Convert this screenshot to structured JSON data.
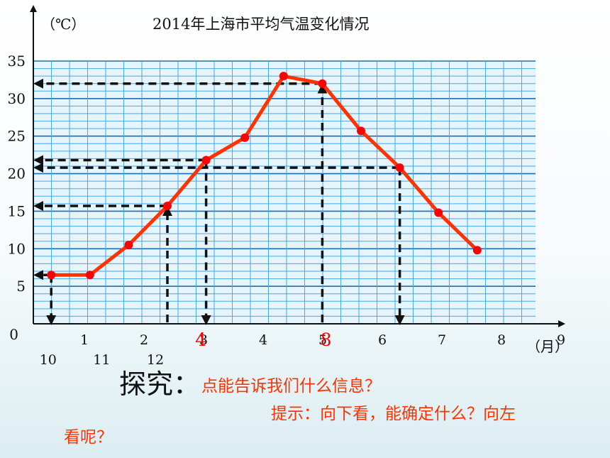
{
  "chart_data": {
    "type": "line",
    "title": "2014年上海市平均气温变化情况",
    "y_unit_label": "（℃）",
    "x_unit_label": "（月）",
    "ylim": [
      0,
      35
    ],
    "y_ticks": [
      "0",
      "5",
      "10",
      "15",
      "20",
      "25",
      "30",
      "35"
    ],
    "x_tick_labels": [
      {
        "label": "1",
        "x": 1
      },
      {
        "label": "2",
        "x": 2
      },
      {
        "label": "3",
        "x": 3
      },
      {
        "label": "4",
        "x": 4
      },
      {
        "label": "5",
        "x": 5
      },
      {
        "label": "6",
        "x": 6
      },
      {
        "label": "7",
        "x": 7
      },
      {
        "label": "8",
        "x": 8
      },
      {
        "label": "9",
        "x": 9
      }
    ],
    "x_second_row_labels": [
      {
        "label": "10",
        "x": 0.2
      },
      {
        "label": "11",
        "x": 1.1
      },
      {
        "label": "12",
        "x": 2.0
      }
    ],
    "highlight_labels": [
      {
        "label": "4",
        "x": 2.8
      },
      {
        "label": "8",
        "x": 4.9
      }
    ],
    "grid": true,
    "line_color": "#ff3300",
    "point_color": "#ff0000",
    "guide_color": "#111111",
    "series": [
      {
        "points": [
          {
            "x": 0.3,
            "y": 6.5
          },
          {
            "x": 0.95,
            "y": 6.5
          },
          {
            "x": 1.6,
            "y": 10.5
          },
          {
            "x": 2.25,
            "y": 15.7
          },
          {
            "x": 2.9,
            "y": 21.8
          },
          {
            "x": 3.55,
            "y": 24.8
          },
          {
            "x": 4.2,
            "y": 33
          },
          {
            "x": 4.85,
            "y": 32
          },
          {
            "x": 5.5,
            "y": 25.7
          },
          {
            "x": 6.15,
            "y": 20.8
          },
          {
            "x": 6.8,
            "y": 14.8
          },
          {
            "x": 7.45,
            "y": 9.8
          }
        ]
      }
    ],
    "guide_lines": [
      {
        "point_index": 0,
        "horizontal": true,
        "vertical": true
      },
      {
        "point_index": 3,
        "horizontal": true,
        "vertical": true
      },
      {
        "point_index": 4,
        "horizontal": true,
        "vertical": true
      },
      {
        "point_index": 7,
        "horizontal": true,
        "vertical": true
      },
      {
        "point_index": 9,
        "horizontal": true,
        "vertical": true
      }
    ]
  },
  "question": {
    "lead": "探究：",
    "text": "点能告诉我们什么信息？",
    "hint_line1": "提示：向下看，能确定什么？向左",
    "hint_line2": "看呢？"
  }
}
